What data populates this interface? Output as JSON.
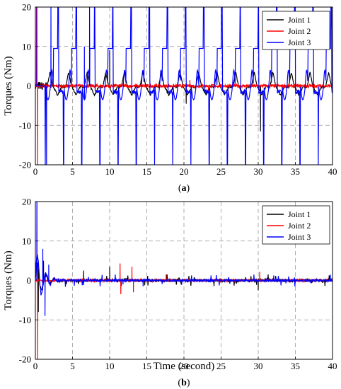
{
  "chart_data": [
    {
      "type": "line",
      "subfigure_label": {
        "open": "(",
        "letter": "a",
        "close": ")"
      },
      "xlabel": "",
      "ylabel": "Torques (Nm)",
      "xlim": [
        0,
        40
      ],
      "ylim": [
        -20,
        20
      ],
      "xticks": [
        "0",
        "5",
        "10",
        "15",
        "20",
        "25",
        "30",
        "35",
        "40"
      ],
      "yticks": [
        "20",
        "10",
        "0",
        "-10",
        "-20"
      ],
      "grid": "dashed",
      "legend": "top-right",
      "series": [
        {
          "name": "Joint 1",
          "color": "#000000",
          "pattern": {
            "kind": "periodic",
            "start": 1.6,
            "period": 2.5,
            "peak": 3.5,
            "trough": -2.3
          },
          "spikes": [
            [
              10.0,
              9.0
            ],
            [
              20.3,
              -4.5
            ],
            [
              30.3,
              -11.5
            ]
          ]
        },
        {
          "name": "Joint 2",
          "color": "#ff0000",
          "pattern": {
            "kind": "noise",
            "amp": 0.8
          },
          "spikes": [
            [
              0.15,
              20
            ],
            [
              0.3,
              -20
            ],
            [
              20.8,
              1.5
            ],
            [
              23.3,
              -1.2
            ]
          ]
        },
        {
          "name": "Joint 3",
          "color": "#0000ff",
          "pattern": {
            "kind": "periodic-spiky",
            "start": 1.3,
            "period": 2.45,
            "up": 9.5,
            "down": -20
          },
          "spikes": [
            [
              0.2,
              20
            ],
            [
              1.5,
              -20
            ],
            [
              2.1,
              20
            ],
            [
              6.6,
              10
            ],
            [
              7.3,
              20
            ]
          ]
        }
      ]
    },
    {
      "type": "line",
      "subfigure_label": {
        "open": "(",
        "letter": "b",
        "close": ")"
      },
      "xlabel": "Time (second)",
      "ylabel": "Torques (Nm)",
      "xlim": [
        0,
        40
      ],
      "ylim": [
        -20,
        20
      ],
      "xticks": [
        "0",
        "5",
        "10",
        "15",
        "20",
        "25",
        "30",
        "35",
        "40"
      ],
      "yticks": [
        "20",
        "10",
        "0",
        "-10",
        "-20"
      ],
      "grid": "dashed",
      "legend": "top-right",
      "series": [
        {
          "name": "Joint 1",
          "color": "#000000",
          "pattern": {
            "kind": "decay",
            "amp0": 6,
            "noise": 0.6
          },
          "spikes": [
            [
              0.4,
              -8
            ],
            [
              1.1,
              5
            ],
            [
              6.5,
              2.5
            ],
            [
              10.0,
              3.5
            ],
            [
              30.0,
              -2.5
            ]
          ]
        },
        {
          "name": "Joint 2",
          "color": "#ff0000",
          "pattern": {
            "kind": "noise",
            "amp": 0.5
          },
          "spikes": [
            [
              0.2,
              20
            ],
            [
              0.3,
              -20
            ],
            [
              11.4,
              4.3
            ],
            [
              11.5,
              -3.5
            ],
            [
              13.0,
              3.5
            ],
            [
              13.2,
              -3
            ],
            [
              17.6,
              1.5
            ],
            [
              30.2,
              2.2
            ]
          ]
        },
        {
          "name": "Joint 3",
          "color": "#0000ff",
          "pattern": {
            "kind": "decay",
            "amp0": 9,
            "noise": 0.5
          },
          "spikes": [
            [
              0.2,
              20
            ],
            [
              1.0,
              8
            ],
            [
              1.3,
              -9
            ],
            [
              1.8,
              4
            ],
            [
              11.8,
              -1
            ],
            [
              14.5,
              -1.5
            ]
          ]
        }
      ]
    }
  ]
}
